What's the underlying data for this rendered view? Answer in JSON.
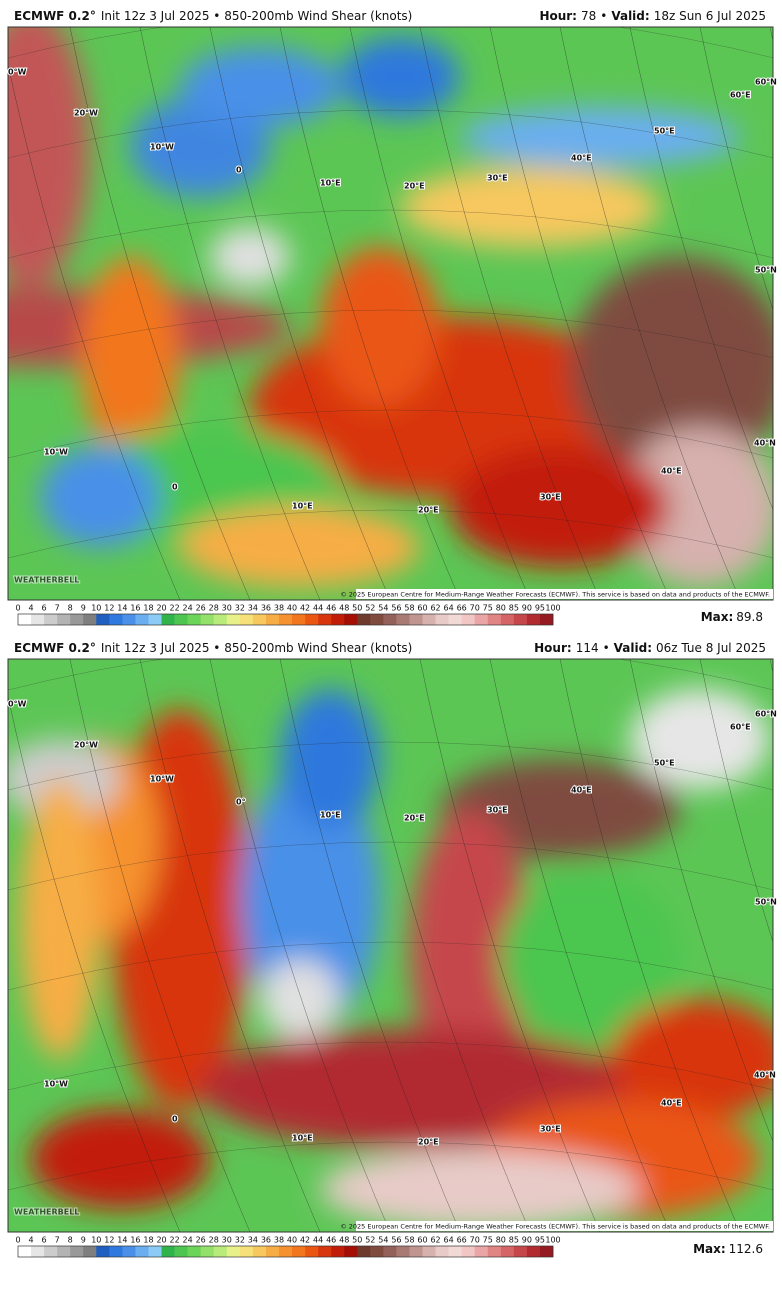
{
  "panels": [
    {
      "model": "ECMWF 0.2°",
      "subtitle": "Init 12z 3 Jul 2025 • 850-200mb Wind Shear (knots)",
      "hour_label": "Hour:",
      "hour": "78",
      "separator": "•",
      "valid_label": "Valid:",
      "valid": "18z Sun 6 Jul 2025",
      "map_labels": [
        "0°W",
        "20°W",
        "10°W",
        "0",
        "10°E",
        "20°E",
        "30°E",
        "40°E",
        "50°E",
        "60°E",
        "60°N",
        "50°N",
        "40°N",
        "10°W",
        "0",
        "10°E",
        "20°E",
        "30°E",
        "40°E"
      ],
      "watermark": "WEATHERBELL",
      "copyright": "© 2025 European Centre for Medium-Range Weather Forecasts (ECMWF). This service is based on data and products of the ECMWF.",
      "max_label": "Max:",
      "max": 89.8
    },
    {
      "model": "ECMWF 0.2°",
      "subtitle": "Init 12z 3 Jul 2025 • 850-200mb Wind Shear (knots)",
      "hour_label": "Hour:",
      "hour": "114",
      "separator": "•",
      "valid_label": "Valid:",
      "valid": "06z Tue 8 Jul 2025",
      "map_labels": [
        "0°W",
        "20°W",
        "10°W",
        "0°",
        "10°E",
        "20°E",
        "30°E",
        "40°E",
        "50°E",
        "60°E",
        "60°N",
        "50°N",
        "40°N",
        "10°W",
        "0",
        "10°E",
        "20°E",
        "30°E",
        "40°E"
      ],
      "watermark": "WEATHERBELL",
      "copyright": "© 2025 European Centre for Medium-Range Weather Forecasts (ECMWF). This service is based on data and products of the ECMWF.",
      "max_label": "Max:",
      "max": 112.6
    }
  ],
  "colorbar": {
    "labels": [
      0,
      4,
      6,
      7,
      8,
      9,
      10,
      12,
      14,
      16,
      18,
      20,
      22,
      24,
      26,
      28,
      30,
      32,
      34,
      36,
      38,
      40,
      42,
      44,
      46,
      48,
      50,
      52,
      54,
      56,
      58,
      60,
      62,
      64,
      66,
      70,
      75,
      80,
      85,
      90,
      95,
      100
    ],
    "colors": [
      "#ffffff",
      "#e6e6e6",
      "#cccccc",
      "#b3b3b3",
      "#999999",
      "#7f7f7f",
      "#1f5fbf",
      "#2f78dd",
      "#4a90e8",
      "#6aaef0",
      "#8ccbf5",
      "#2fb34a",
      "#4cc650",
      "#6dd45a",
      "#93e06a",
      "#b9eb7a",
      "#e8f08a",
      "#f6e07a",
      "#f7c85e",
      "#f7ad45",
      "#f5922f",
      "#f2761e",
      "#ea5612",
      "#d8360c",
      "#c21d08",
      "#a30f05",
      "#6e3a2e",
      "#7f4b3f",
      "#93615a",
      "#a97a74",
      "#c09590",
      "#d6b1ad",
      "#e8cbc8",
      "#f1d9d6",
      "#f2c6c4",
      "#eaa6a6",
      "#e08484",
      "#d46466",
      "#c6474b",
      "#b12b31",
      "#951a21"
    ]
  }
}
